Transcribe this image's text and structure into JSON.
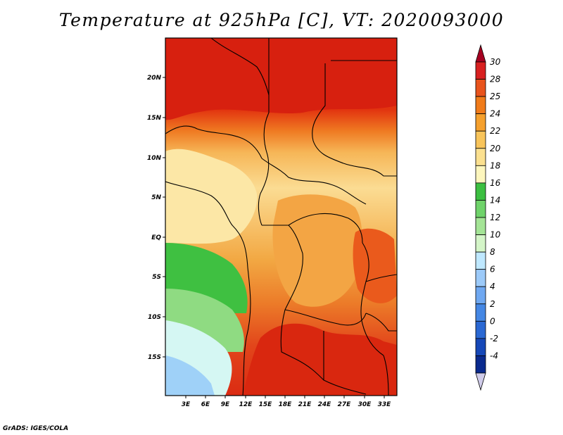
{
  "title": "Temperature at 925hPa [C], VT: 2020093000",
  "credit": "GrADS: IGES/COLA",
  "map": {
    "x_ticks": [
      "3E",
      "6E",
      "9E",
      "12E",
      "15E",
      "18E",
      "21E",
      "24E",
      "27E",
      "30E",
      "33E"
    ],
    "y_ticks": [
      "20N",
      "15N",
      "10N",
      "5N",
      "EQ",
      "5S",
      "10S",
      "15S"
    ],
    "field_by_latitude": [
      {
        "lat": "20N",
        "temp_c": 29
      },
      {
        "lat": "15N",
        "temp_c": 27
      },
      {
        "lat": "10N",
        "temp_c": 21
      },
      {
        "lat": "5N",
        "temp_c": 19
      },
      {
        "lat": "EQ",
        "temp_c": 21
      },
      {
        "lat": "5S",
        "temp_c": 23
      },
      {
        "lat": "10S",
        "temp_c": 26
      },
      {
        "lat": "15S",
        "temp_c": 28
      }
    ]
  },
  "colorbar": {
    "labels": [
      "30",
      "28",
      "25",
      "24",
      "22",
      "20",
      "18",
      "16",
      "14",
      "12",
      "10",
      "8",
      "6",
      "4",
      "2",
      "0",
      "-2",
      "-4"
    ],
    "colors": [
      "#a50021",
      "#d82020",
      "#e8531c",
      "#f07b1a",
      "#f5a02d",
      "#f8c45a",
      "#fbe08f",
      "#fdf6bd",
      "#3cbf41",
      "#6fd36a",
      "#a4e496",
      "#d4f5c8",
      "#bfe8ff",
      "#9ccaf9",
      "#6fa8f1",
      "#4587e4",
      "#2a68d3",
      "#1648b8",
      "#0a2a8e",
      "#d0ccea"
    ]
  }
}
